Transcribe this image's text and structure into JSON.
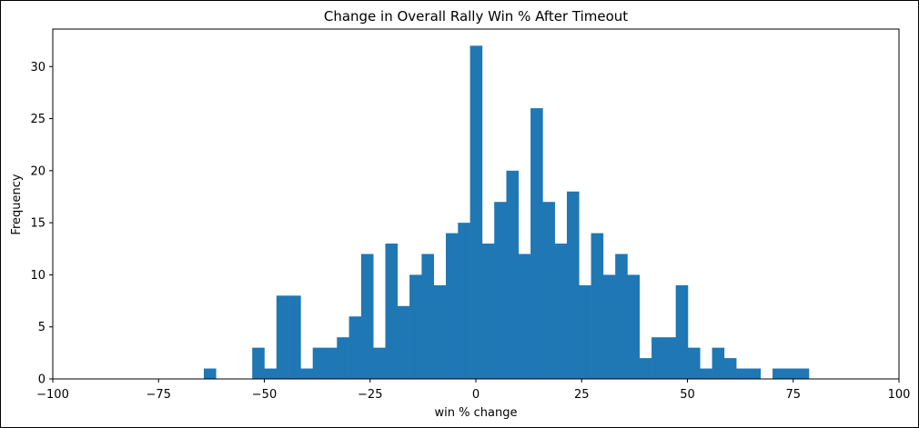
{
  "chart_data": {
    "type": "bar",
    "title": "Change in Overall Rally Win % After Timeout",
    "xlabel": "win % change",
    "ylabel": "Frequency",
    "xlim": [
      -100,
      100
    ],
    "ylim": [
      0,
      33.6
    ],
    "xticks": [
      -100,
      -75,
      -50,
      -25,
      0,
      25,
      50,
      75,
      100
    ],
    "xtick_labels": [
      "−100",
      "−75",
      "−50",
      "−25",
      "0",
      "25",
      "50",
      "75",
      "100"
    ],
    "yticks": [
      0,
      5,
      10,
      15,
      20,
      25,
      30
    ],
    "ytick_labels": [
      "0",
      "5",
      "10",
      "15",
      "20",
      "25",
      "30"
    ],
    "bar_color": "#1f77b4",
    "grid": false,
    "bin_start": -64.3,
    "bin_width": 2.86,
    "values": [
      1,
      0,
      0,
      0,
      3,
      1,
      8,
      8,
      1,
      3,
      3,
      4,
      6,
      12,
      3,
      13,
      7,
      10,
      12,
      9,
      14,
      15,
      32,
      13,
      17,
      20,
      12,
      26,
      17,
      13,
      18,
      9,
      14,
      10,
      12,
      10,
      2,
      4,
      4,
      9,
      3,
      1,
      3,
      2,
      1,
      1,
      0,
      1,
      1,
      1
    ]
  }
}
